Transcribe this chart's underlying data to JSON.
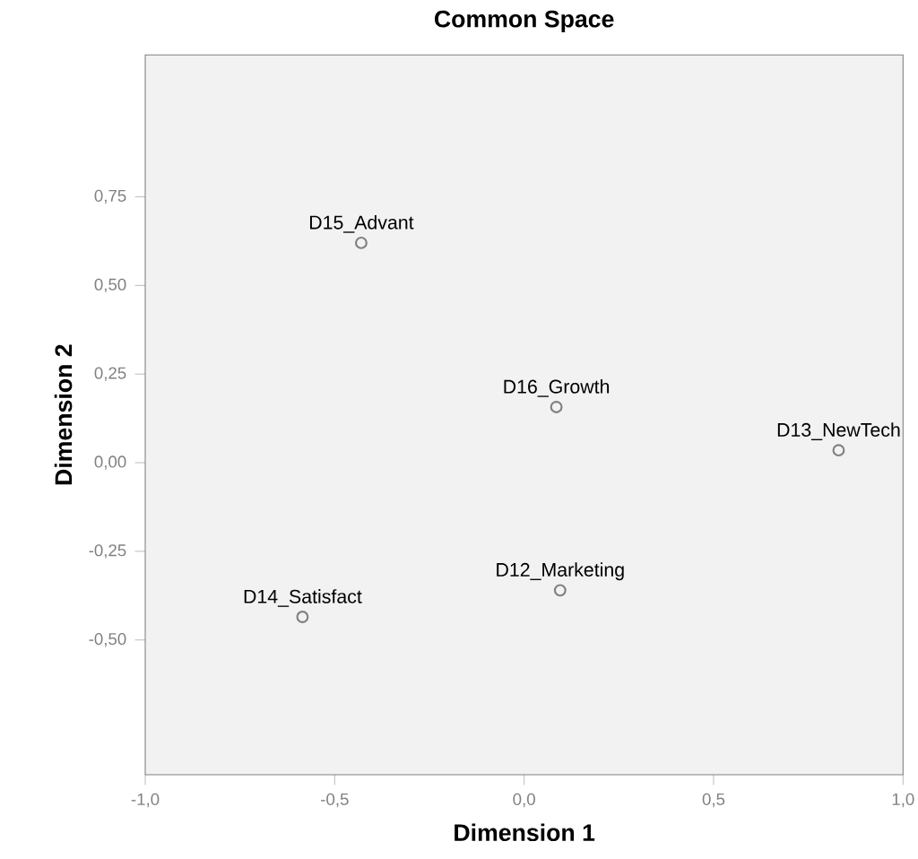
{
  "chart_data": {
    "type": "scatter",
    "title": "Common Space",
    "xlabel": "Dimension 1",
    "ylabel": "Dimension 2",
    "x": [
      -0.43,
      0.085,
      0.83,
      0.095,
      -0.585
    ],
    "values": [
      0.62,
      0.157,
      0.035,
      -0.36,
      -0.435
    ],
    "color": "#808080",
    "marker": "circle",
    "xlim": [
      -1,
      1
    ],
    "ylim": [
      -0.88,
      1.15
    ],
    "xticks": [
      {
        "value": -1,
        "label": "-1,0"
      },
      {
        "value": -0.5,
        "label": "-0,5"
      },
      {
        "value": 0,
        "label": "0,0"
      },
      {
        "value": 0.5,
        "label": "0,5"
      },
      {
        "value": 1,
        "label": "1,0"
      }
    ],
    "yticks": [
      {
        "value": -0.5,
        "label": "-0,50"
      },
      {
        "value": -0.25,
        "label": "-0,25"
      },
      {
        "value": 0,
        "label": "0,00"
      },
      {
        "value": 0.25,
        "label": "0,25"
      },
      {
        "value": 0.5,
        "label": "0,50"
      },
      {
        "value": 0.75,
        "label": "0,75"
      }
    ],
    "annotations": [
      {
        "text": "D15_Advant",
        "x": -0.43,
        "y": 0.62
      },
      {
        "text": "D16_Growth",
        "x": 0.085,
        "y": 0.157
      },
      {
        "text": "D13_NewTech",
        "x": 0.83,
        "y": 0.035
      },
      {
        "text": "D12_Marketing",
        "x": 0.095,
        "y": -0.36
      },
      {
        "text": "D14_Satisfact",
        "x": -0.585,
        "y": -0.435
      }
    ]
  }
}
